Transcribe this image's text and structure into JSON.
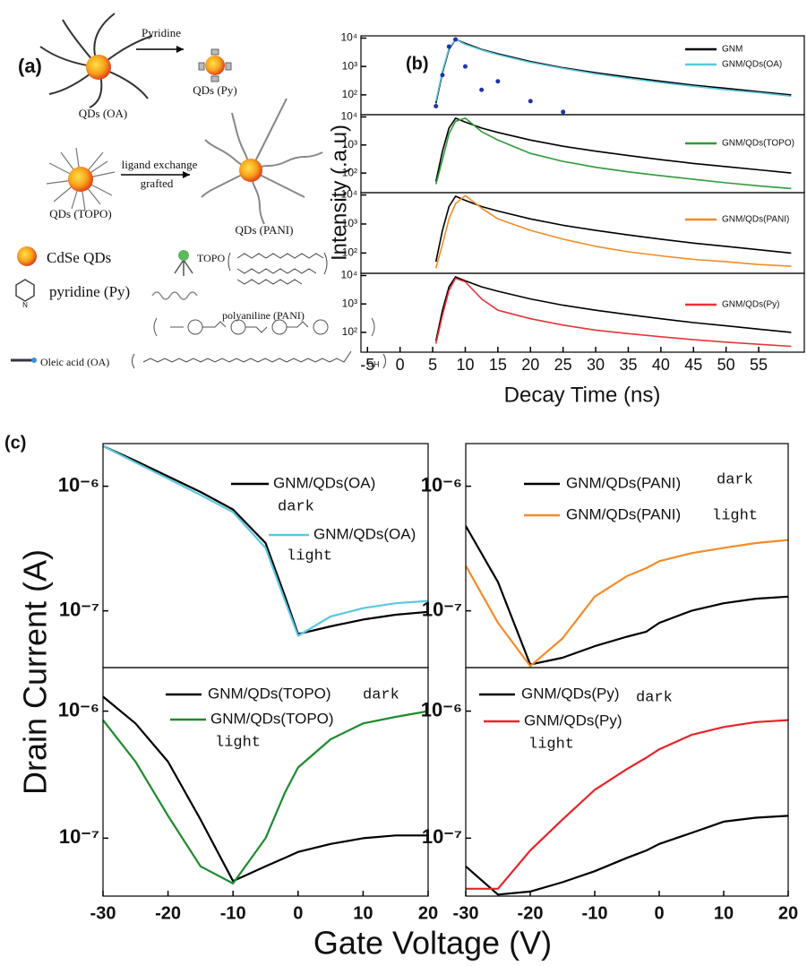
{
  "panel_a": {
    "label": "(a)",
    "pyridine_arrow": "Pyridine",
    "qds_py": "QDs (Py)",
    "qds_oa": "QDs (OA)",
    "exchange_1": "ligand exchange",
    "exchange_2": "grafted",
    "qds_topo": "QDs (TOPO)",
    "qds_pani": "QDs (PANI)",
    "cdse": "CdSe QDs",
    "topo": "TOPO",
    "pyridine": "pyridine (Py)",
    "n_atom": "N",
    "polyaniline": "polyaniline (PANI)",
    "oleic": "Oleic acid (OA)",
    "oh": "OH"
  },
  "panel_b": {
    "label": "(b)",
    "x_label": "Decay Time (ns)",
    "y_label": "Intensity (.a.u)"
  },
  "panel_c": {
    "label": "(c)",
    "x_label": "Gate Voltage (V)",
    "y_label": "Drain Current (A)"
  },
  "chart_data": [
    {
      "type": "line",
      "ylog": true,
      "xlim": [
        -6,
        62
      ],
      "ylim": [
        20,
        12000
      ],
      "yticks": [
        {
          "value": 100,
          "label": "10²"
        },
        {
          "value": 1000,
          "label": "10³"
        },
        {
          "value": 10000,
          "label": "10⁴"
        }
      ],
      "x": [
        5.5,
        6.5,
        7.5,
        8.5,
        10,
        12.5,
        15,
        20,
        25,
        30,
        35,
        40,
        45,
        50,
        55,
        60
      ],
      "series": [
        {
          "name": "GNM",
          "color": "#000000",
          "values": [
            50,
            600,
            4000,
            9000,
            6500,
            4000,
            2800,
            1500,
            900,
            600,
            420,
            300,
            220,
            170,
            130,
            100
          ]
        },
        {
          "name": "GNM/QDs(OA)",
          "color": "#5bc8e0",
          "values": [
            60,
            700,
            4500,
            9000,
            6000,
            3800,
            2600,
            1400,
            850,
            550,
            380,
            270,
            200,
            150,
            120,
            90
          ]
        },
        {
          "color": "#2233aa",
          "style": "dots",
          "values": [
            40,
            500,
            5000,
            9000,
            1000,
            150,
            300,
            60,
            25,
            null,
            null,
            null,
            null,
            null,
            null,
            null
          ]
        }
      ]
    },
    {
      "type": "line",
      "ylog": true,
      "xlim": [
        -6,
        62
      ],
      "ylim": [
        20,
        12000
      ],
      "yticks": [
        {
          "value": 100,
          "label": "10²"
        },
        {
          "value": 1000,
          "label": "10³"
        },
        {
          "value": 10000,
          "label": "10⁴"
        }
      ],
      "x": [
        5.5,
        6.5,
        7.5,
        8.5,
        10,
        12.5,
        15,
        20,
        25,
        30,
        35,
        40,
        45,
        50,
        55,
        60
      ],
      "series": [
        {
          "color": "#000000",
          "values": [
            50,
            600,
            4000,
            9000,
            6500,
            4000,
            2800,
            1500,
            900,
            600,
            420,
            300,
            220,
            170,
            130,
            100
          ]
        },
        {
          "name": "GNM/QDs(TOPO)",
          "color": "#2f9a3a",
          "values": [
            40,
            300,
            2500,
            7000,
            9000,
            3000,
            1500,
            500,
            260,
            160,
            110,
            80,
            60,
            45,
            35,
            28
          ]
        }
      ]
    },
    {
      "type": "line",
      "ylog": true,
      "xlim": [
        -6,
        62
      ],
      "ylim": [
        20,
        12000
      ],
      "yticks": [
        {
          "value": 100,
          "label": "10²"
        },
        {
          "value": 1000,
          "label": "10³"
        },
        {
          "value": 10000,
          "label": "10⁴"
        }
      ],
      "x": [
        5.5,
        6.5,
        7.5,
        8.5,
        10,
        12.5,
        15,
        20,
        25,
        30,
        35,
        40,
        45,
        50,
        55,
        60
      ],
      "series": [
        {
          "color": "#000000",
          "values": [
            50,
            600,
            4000,
            9000,
            6500,
            4000,
            2800,
            1500,
            900,
            600,
            420,
            300,
            220,
            170,
            130,
            100
          ]
        },
        {
          "name": "GNM/QDs(PANI)",
          "color": "#f28c28",
          "values": [
            30,
            200,
            1500,
            5000,
            9500,
            3500,
            1500,
            600,
            300,
            170,
            110,
            80,
            60,
            50,
            40,
            35
          ]
        }
      ]
    },
    {
      "type": "line",
      "ylog": true,
      "xlim": [
        -6,
        62
      ],
      "ylim": [
        20,
        12000
      ],
      "yticks": [
        {
          "value": 100,
          "label": "10²"
        },
        {
          "value": 1000,
          "label": "10³"
        },
        {
          "value": 10000,
          "label": "10⁴"
        }
      ],
      "xticks": [
        -5,
        0,
        5,
        10,
        15,
        20,
        25,
        30,
        35,
        40,
        45,
        50,
        55
      ],
      "x": [
        5.5,
        6.5,
        7.5,
        8.5,
        10,
        12.5,
        15,
        20,
        25,
        30,
        35,
        40,
        45,
        50,
        55,
        60
      ],
      "series": [
        {
          "color": "#000000",
          "values": [
            50,
            600,
            4000,
            9000,
            6500,
            4000,
            2800,
            1500,
            900,
            600,
            420,
            300,
            220,
            170,
            130,
            100
          ]
        },
        {
          "name": "GNM/QDs(Py)",
          "color": "#e8333a",
          "values": [
            40,
            400,
            3000,
            8000,
            6000,
            1500,
            600,
            300,
            180,
            120,
            90,
            70,
            55,
            45,
            38,
            32
          ]
        }
      ]
    },
    {
      "type": "line",
      "ylog": true,
      "xlim": [
        -30,
        20
      ],
      "ylim": [
        3.5e-08,
        2.2e-06
      ],
      "yticks": [
        {
          "value": 1e-07,
          "label": "10⁻⁷"
        },
        {
          "value": 1e-06,
          "label": "10⁻⁶"
        }
      ],
      "x": [
        -30,
        -25,
        -20,
        -15,
        -10,
        -5,
        -2,
        0,
        5,
        10,
        15,
        20
      ],
      "series": [
        {
          "name": "GNM/QDs(OA)",
          "condition": "dark",
          "color": "#000000",
          "values": [
            2.1e-06,
            1.6e-06,
            1.2e-06,
            9e-07,
            6.5e-07,
            3.5e-07,
            1.3e-07,
            6.5e-08,
            7.5e-08,
            8.5e-08,
            9.3e-08,
            9.8e-08
          ]
        },
        {
          "name": "GNM/QDs(OA)",
          "condition": "light",
          "color": "#5bc8e0",
          "values": [
            2.1e-06,
            1.55e-06,
            1.15e-06,
            8.5e-07,
            6.2e-07,
            3.2e-07,
            1.2e-07,
            6.3e-08,
            9e-08,
            1.05e-07,
            1.15e-07,
            1.2e-07
          ]
        }
      ]
    },
    {
      "type": "line",
      "ylog": true,
      "xlim": [
        -30,
        20
      ],
      "ylim": [
        3.5e-08,
        2.2e-06
      ],
      "yticks": [
        {
          "value": 1e-07,
          "label": "10⁻⁷"
        },
        {
          "value": 1e-06,
          "label": "10⁻⁶"
        }
      ],
      "x": [
        -30,
        -25,
        -20,
        -15,
        -10,
        -5,
        -2,
        0,
        5,
        10,
        15,
        20
      ],
      "series": [
        {
          "name": "GNM/QDs(PANI)",
          "condition": "dark",
          "color": "#000000",
          "values": [
            4.8e-07,
            1.7e-07,
            3.7e-08,
            4.2e-08,
            5.2e-08,
            6.2e-08,
            6.8e-08,
            8e-08,
            1e-07,
            1.15e-07,
            1.25e-07,
            1.3e-07
          ]
        },
        {
          "name": "GNM/QDs(PANI)",
          "condition": "light",
          "color": "#f28c28",
          "values": [
            2.3e-07,
            8e-08,
            3.6e-08,
            6e-08,
            1.3e-07,
            1.9e-07,
            2.2e-07,
            2.5e-07,
            2.9e-07,
            3.2e-07,
            3.5e-07,
            3.7e-07
          ]
        }
      ]
    },
    {
      "type": "line",
      "ylog": true,
      "xlim": [
        -30,
        20
      ],
      "ylim": [
        3.5e-08,
        2.2e-06
      ],
      "yticks": [
        {
          "value": 1e-07,
          "label": "10⁻⁷"
        },
        {
          "value": 1e-06,
          "label": "10⁻⁶"
        }
      ],
      "xticks": [
        -30,
        -20,
        -10,
        0,
        10,
        20
      ],
      "x": [
        -30,
        -25,
        -20,
        -15,
        -10,
        -5,
        -2,
        0,
        5,
        10,
        15,
        20
      ],
      "series": [
        {
          "name": "GNM/QDs(TOPO)",
          "condition": "dark",
          "color": "#000000",
          "values": [
            1.3e-06,
            8e-07,
            4e-07,
            1.4e-07,
            4.6e-08,
            6e-08,
            7e-08,
            7.8e-08,
            9e-08,
            1e-07,
            1.05e-07,
            1.05e-07
          ]
        },
        {
          "name": "GNM/QDs(TOPO)",
          "condition": "light",
          "color": "#1e8a2e",
          "values": [
            8.5e-07,
            4e-07,
            1.5e-07,
            6e-08,
            4.4e-08,
            1e-07,
            2.3e-07,
            3.6e-07,
            6e-07,
            8e-07,
            9e-07,
            1e-06
          ]
        }
      ]
    },
    {
      "type": "line",
      "ylog": true,
      "xlim": [
        -30,
        20
      ],
      "ylim": [
        3.5e-08,
        2.2e-06
      ],
      "yticks": [
        {
          "value": 1e-07,
          "label": "10⁻⁷"
        },
        {
          "value": 1e-06,
          "label": "10⁻⁶"
        }
      ],
      "xticks": [
        -30,
        -20,
        -10,
        0,
        10,
        20
      ],
      "x": [
        -30,
        -25,
        -20,
        -15,
        -10,
        -5,
        -2,
        0,
        5,
        10,
        15,
        20
      ],
      "series": [
        {
          "name": "GNM/QDs(Py)",
          "condition": "dark",
          "color": "#000000",
          "values": [
            6e-08,
            3.6e-08,
            3.8e-08,
            4.5e-08,
            5.5e-08,
            7e-08,
            8e-08,
            9e-08,
            1.1e-07,
            1.35e-07,
            1.45e-07,
            1.5e-07
          ]
        },
        {
          "name": "GNM/QDs(Py)",
          "condition": "light",
          "color": "#e8232a",
          "values": [
            4e-08,
            4e-08,
            8e-08,
            1.4e-07,
            2.4e-07,
            3.5e-07,
            4.3e-07,
            5e-07,
            6.5e-07,
            7.5e-07,
            8.2e-07,
            8.5e-07
          ]
        }
      ]
    }
  ]
}
